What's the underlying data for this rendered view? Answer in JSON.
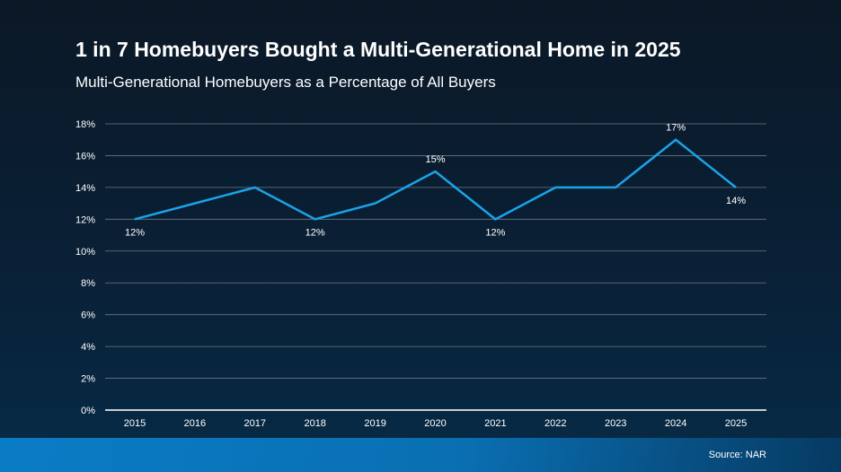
{
  "chart_data": {
    "type": "line",
    "title": "1 in 7 Homebuyers Bought a Multi-Generational Home in 2025",
    "subtitle": "Multi-Generational Homebuyers as a Percentage of All Buyers",
    "categories": [
      "2015",
      "2016",
      "2017",
      "2018",
      "2019",
      "2020",
      "2021",
      "2022",
      "2023",
      "2024",
      "2025"
    ],
    "values": [
      12,
      13,
      14,
      12,
      13,
      15,
      12,
      14,
      14,
      17,
      14
    ],
    "data_labels": {
      "2015": "12%",
      "2018": "12%",
      "2020": "15%",
      "2021": "12%",
      "2024": "17%",
      "2025": "14%"
    },
    "yticks": [
      "0%",
      "2%",
      "4%",
      "6%",
      "8%",
      "10%",
      "12%",
      "14%",
      "16%",
      "18%"
    ],
    "ylim": [
      0,
      18
    ],
    "grid": true,
    "line_color": "#1aa3e8",
    "source": "Source: NAR"
  }
}
